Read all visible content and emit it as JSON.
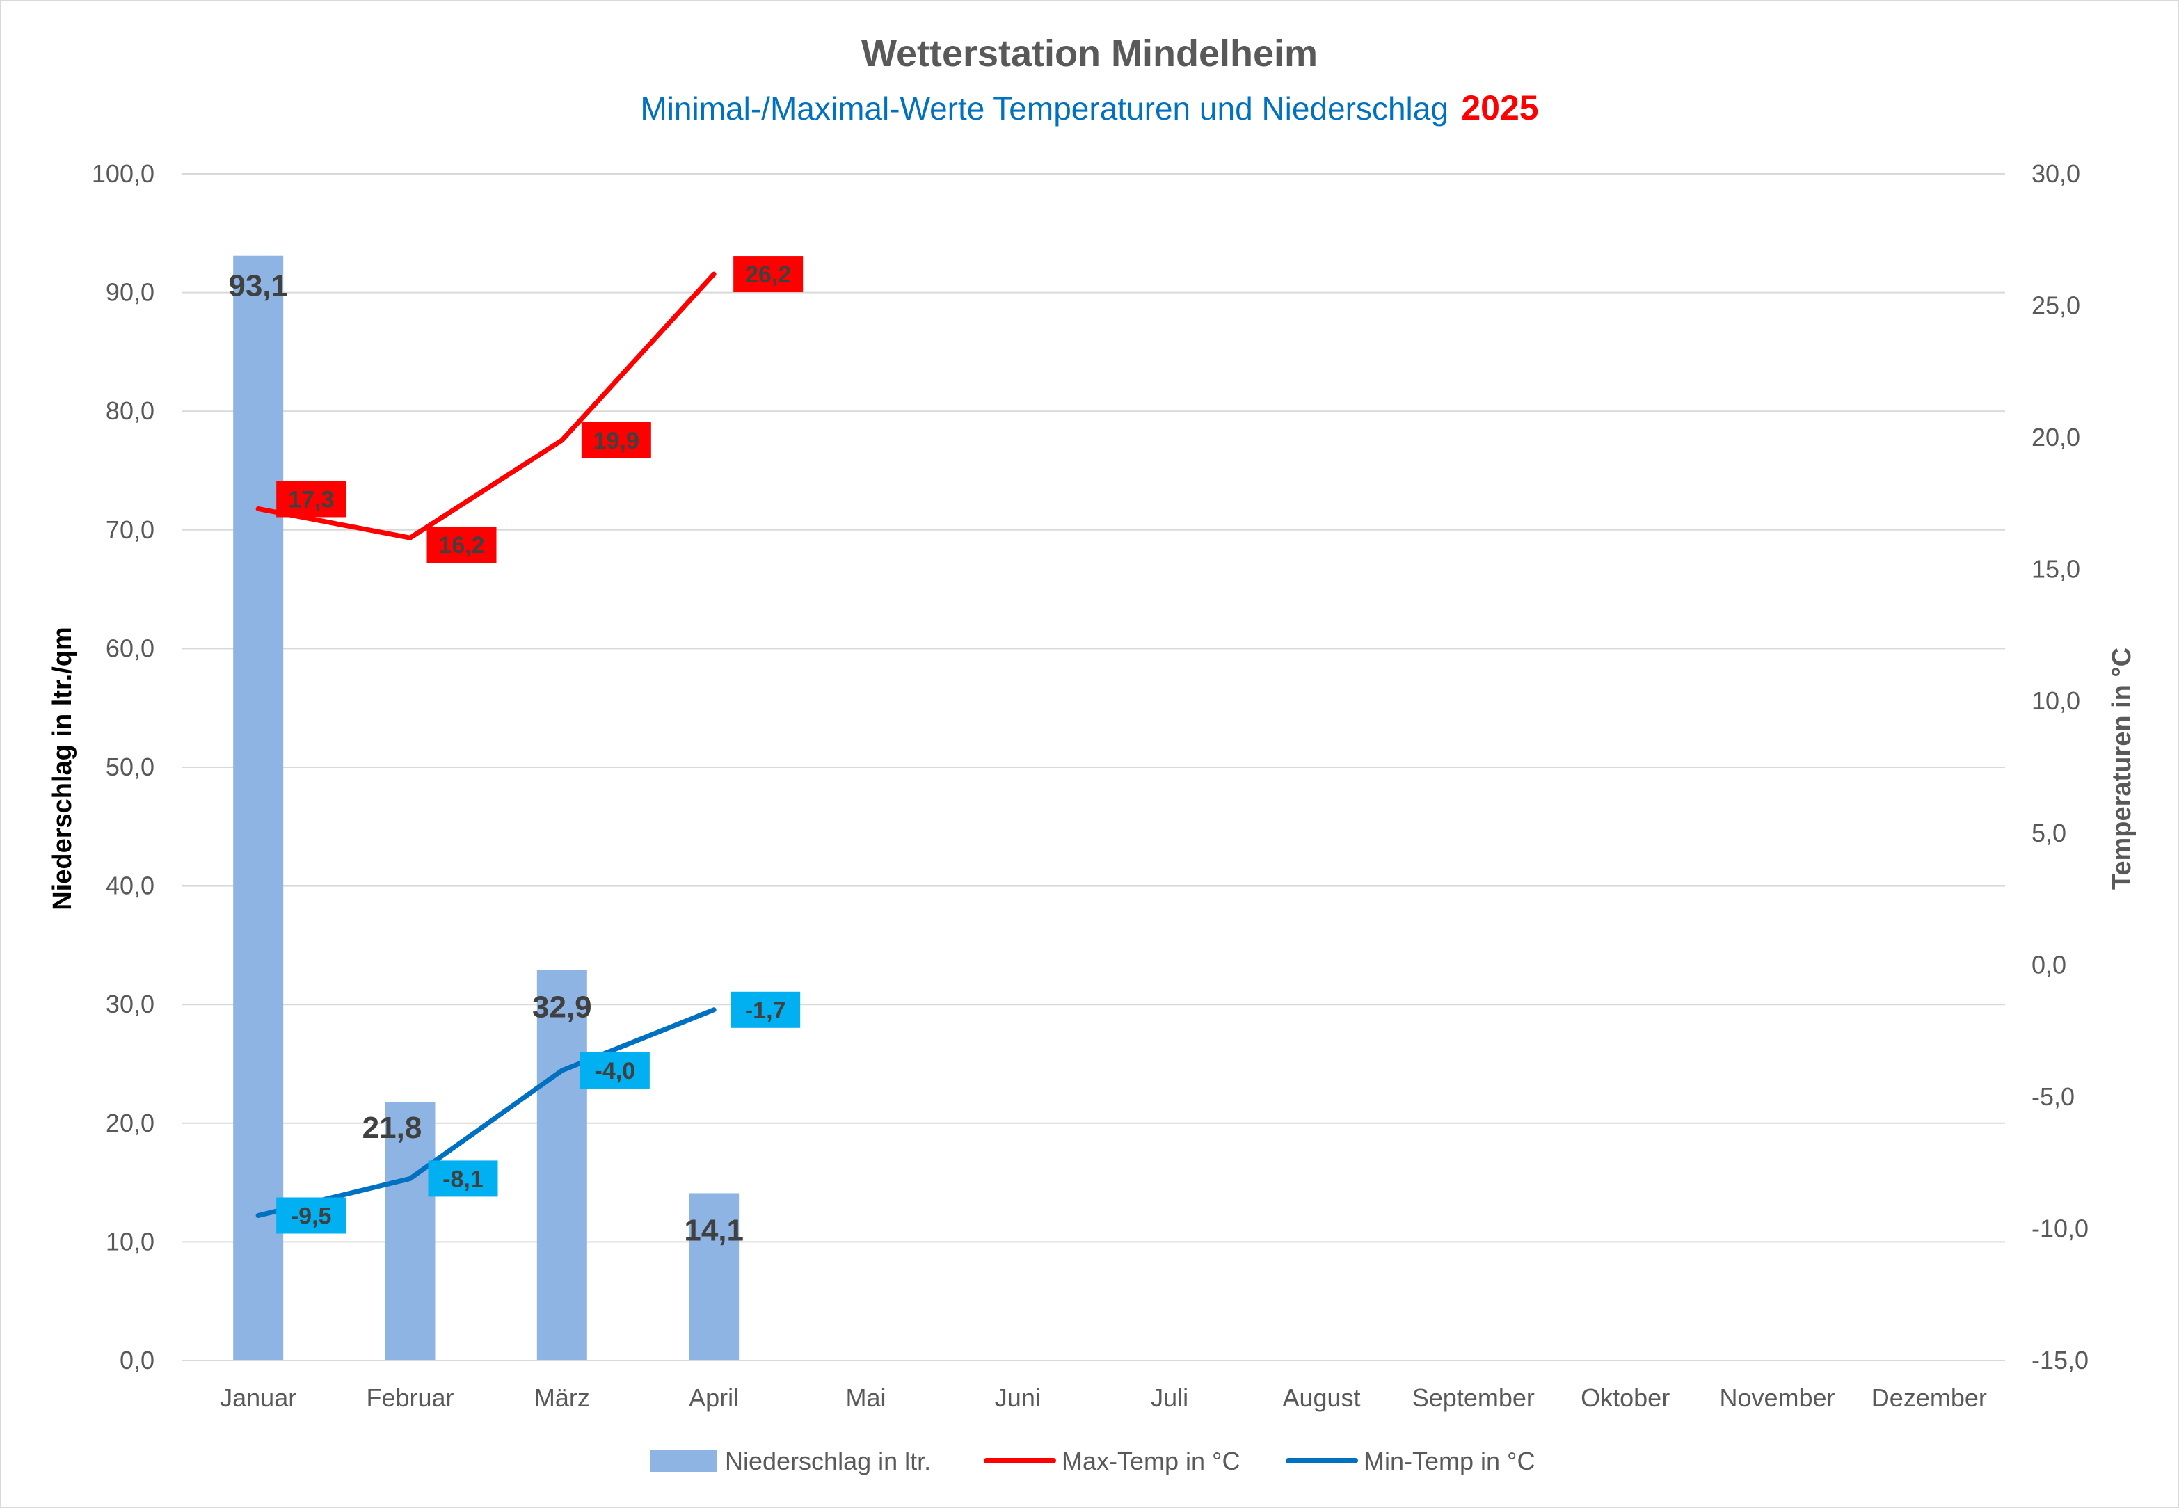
{
  "chart_data": {
    "type": "bar+line",
    "title": "Wetterstation Mindelheim",
    "subtitle": "Minimal-/Maximal-Werte Temperaturen und Niederschlag",
    "subtitle_year": "2025",
    "categories": [
      "Januar",
      "Februar",
      "März",
      "April",
      "Mai",
      "Juni",
      "Juli",
      "August",
      "September",
      "Oktober",
      "November",
      "Dezember"
    ],
    "ylabel_left": "Niederschlag in ltr./qm",
    "ylabel_right": "Temperaturen in °C",
    "ylim_left": [
      0,
      100
    ],
    "ylim_right": [
      -15,
      30
    ],
    "yticks_left": [
      "0,0",
      "10,0",
      "20,0",
      "30,0",
      "40,0",
      "50,0",
      "60,0",
      "70,0",
      "80,0",
      "90,0",
      "100,0"
    ],
    "yticks_right": [
      "-15,0",
      "-10,0",
      "-5,0",
      "0,0",
      "5,0",
      "10,0",
      "15,0",
      "20,0",
      "25,0",
      "30,0"
    ],
    "grid": true,
    "legend_position": "bottom",
    "series": [
      {
        "name": "Niederschlag in ltr.",
        "type": "bar",
        "axis": "left",
        "color": "#8eb4e3",
        "values": [
          93.1,
          21.8,
          32.9,
          14.1,
          null,
          null,
          null,
          null,
          null,
          null,
          null,
          null
        ],
        "labels": [
          "93,1",
          "21,8",
          "32,9",
          "14,1"
        ]
      },
      {
        "name": "Max-Temp in °C",
        "type": "line",
        "axis": "right",
        "color": "#ff0000",
        "label_bg": "#ff0000",
        "values": [
          17.3,
          16.2,
          19.9,
          26.2,
          null,
          null,
          null,
          null,
          null,
          null,
          null,
          null
        ],
        "labels": [
          "17,3",
          "16,2",
          "19,9",
          "26,2"
        ]
      },
      {
        "name": "Min-Temp in °C",
        "type": "line",
        "axis": "right",
        "color": "#0070c0",
        "label_bg": "#00b0f0",
        "values": [
          -9.5,
          -8.1,
          -4.0,
          -1.7,
          null,
          null,
          null,
          null,
          null,
          null,
          null,
          null
        ],
        "labels": [
          "-9,5",
          "-8,1",
          "-4,0",
          "-1,7"
        ]
      }
    ]
  }
}
